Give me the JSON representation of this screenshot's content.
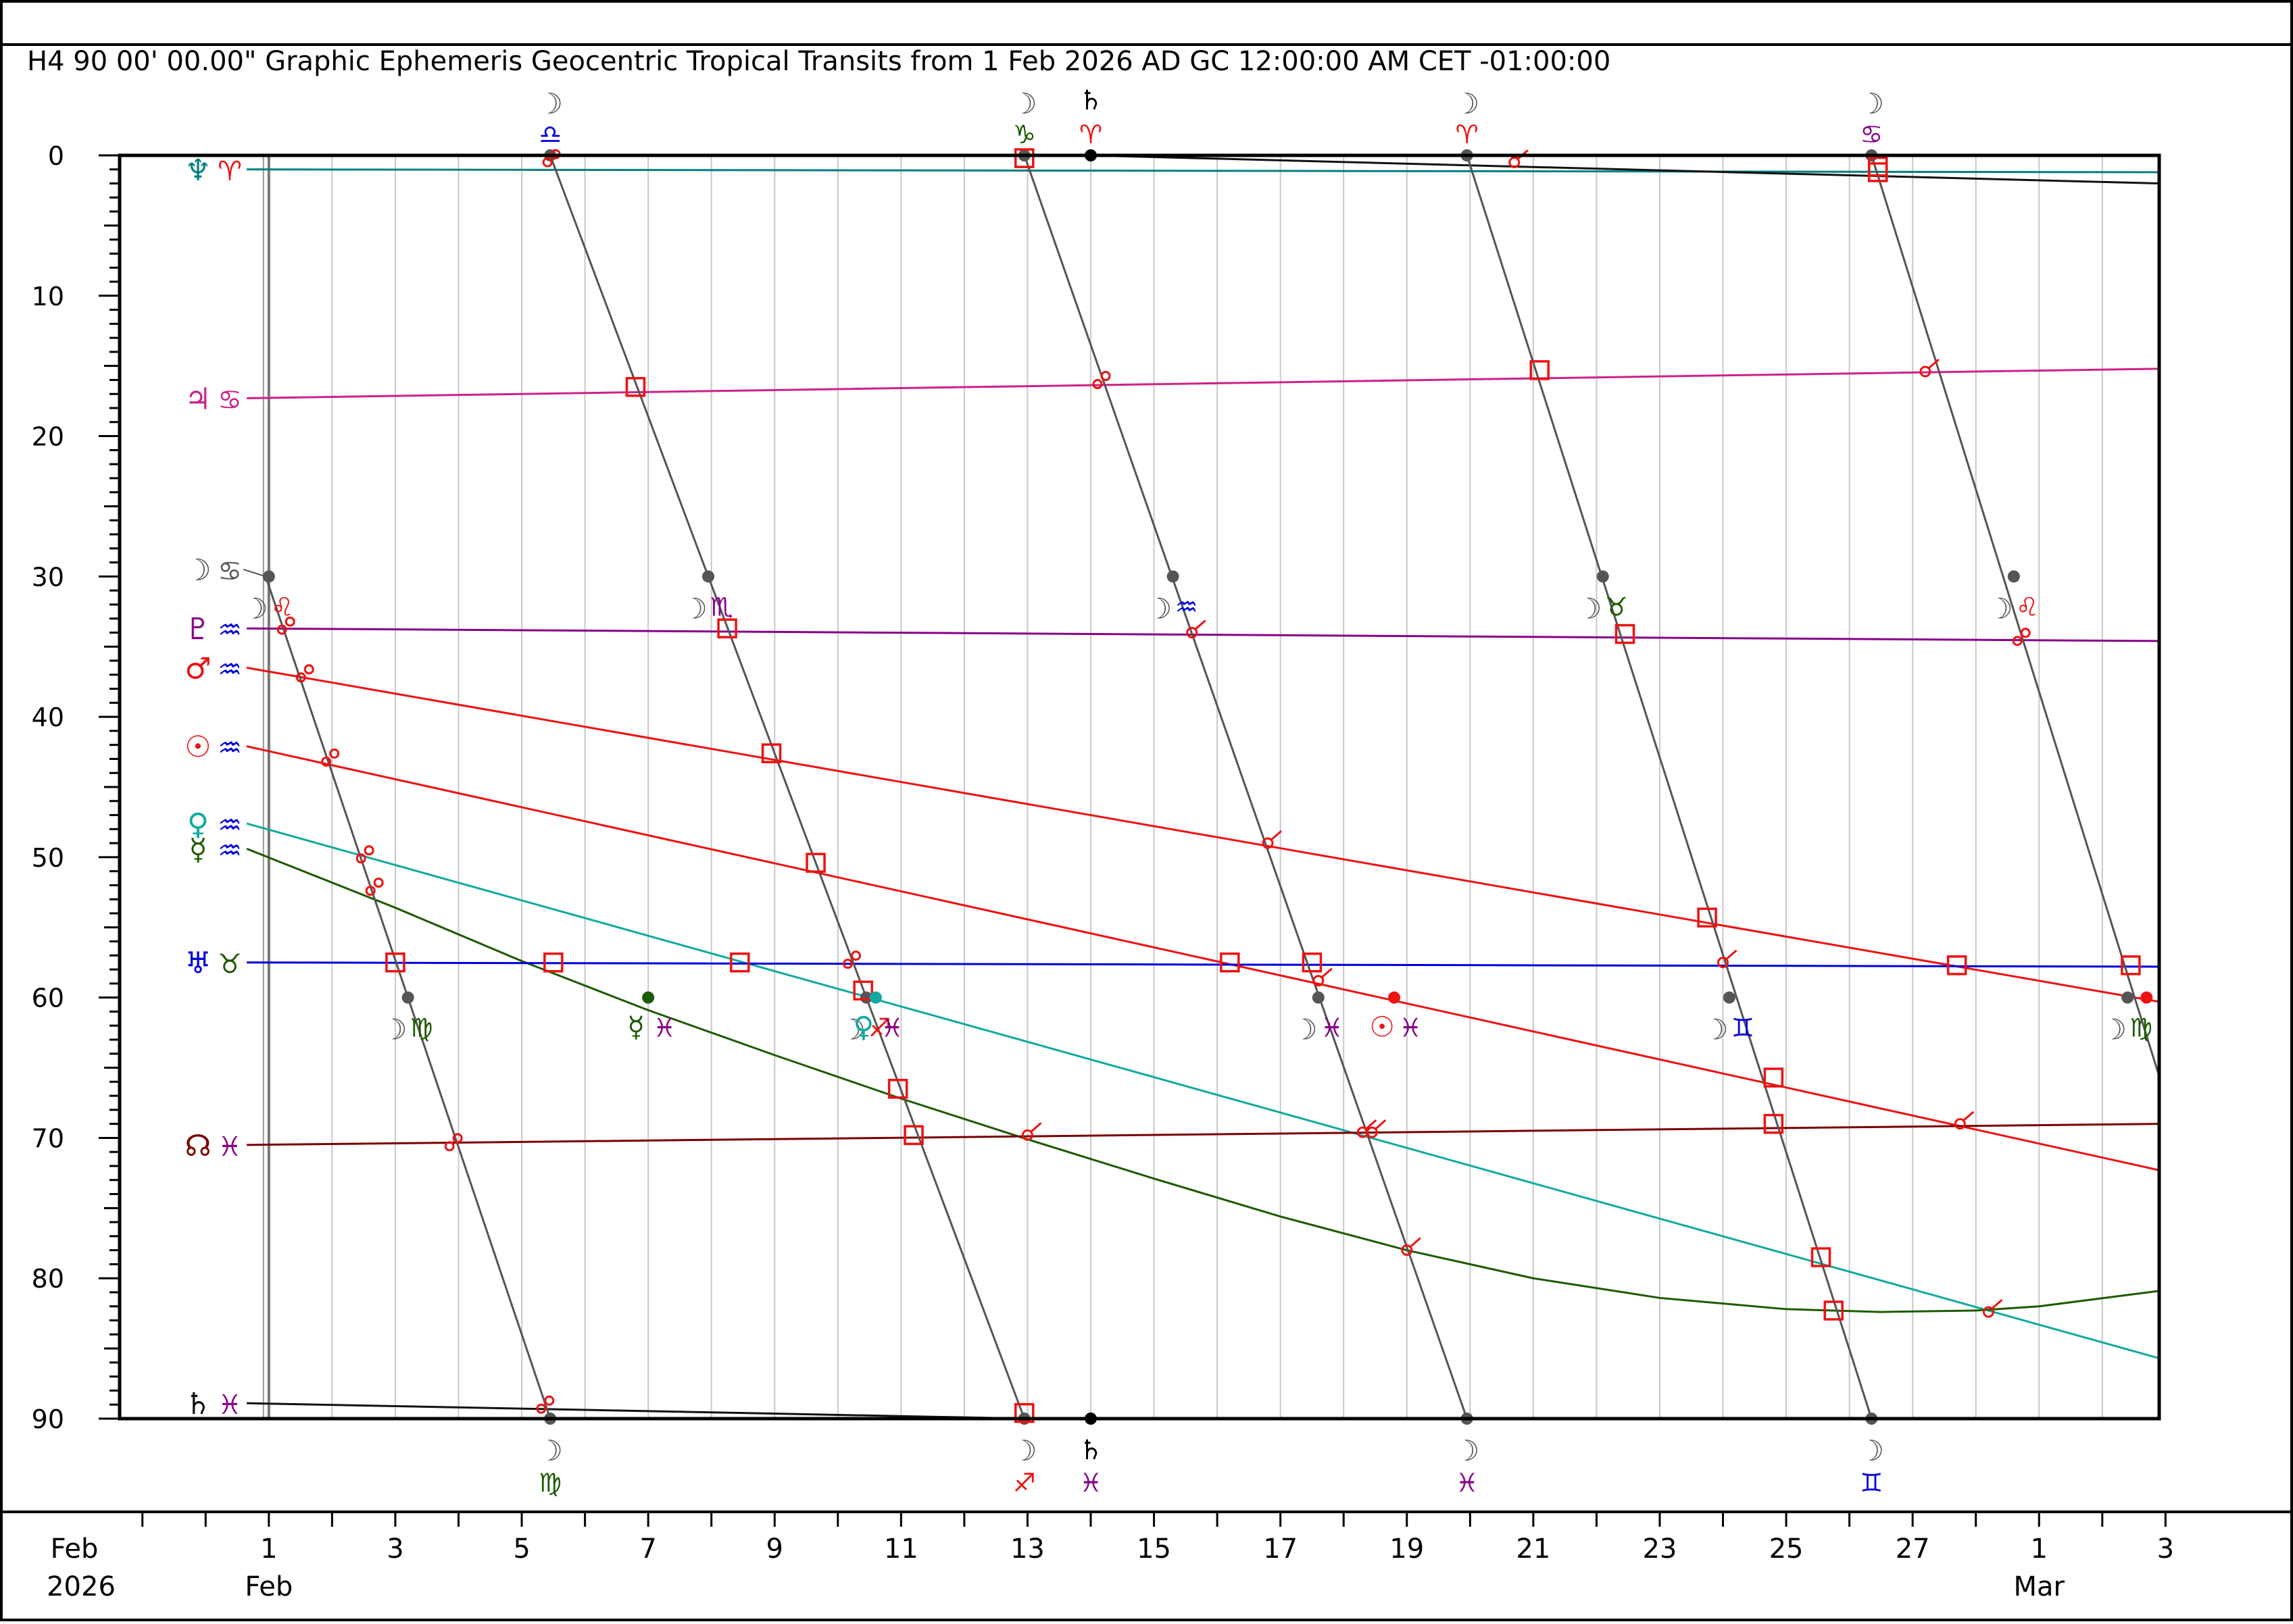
{
  "header": {
    "title": "H4   90 00' 00.00\" Graphic Ephemeris Geocentric Tropical Transits from 1 Feb 2026 AD GC 12:00:00 AM CET -01:00:00"
  },
  "colors": {
    "moon": "#555555",
    "neptune": "#008080",
    "jupiter": "#cc2288",
    "pluto": "#880088",
    "mars": "#ee1111",
    "sun": "#ee1111",
    "venus": "#11aaa0",
    "mercury": "#1d5a00",
    "uranus": "#0000dd",
    "node": "#7a0000",
    "saturn": "#111111",
    "aspect": "#ee1111",
    "grid": "#c8c8c8"
  },
  "chart_data": {
    "type": "line",
    "xlabel": "",
    "ylabel": "",
    "x_unit": "days from 1 Feb 2026",
    "xlim": [
      -2.35,
      29.9
    ],
    "ylim": [
      0,
      90
    ],
    "y_ticks": [
      "0",
      "10",
      "20",
      "30",
      "40",
      "50",
      "60",
      "70",
      "80",
      "90"
    ],
    "x_ticks": [
      {
        "x": 0,
        "label": "1",
        "sub": "Feb"
      },
      {
        "x": 2,
        "label": "3",
        "sub": ""
      },
      {
        "x": 4,
        "label": "5",
        "sub": ""
      },
      {
        "x": 6,
        "label": "7",
        "sub": ""
      },
      {
        "x": 8,
        "label": "9",
        "sub": ""
      },
      {
        "x": 10,
        "label": "11",
        "sub": ""
      },
      {
        "x": 12,
        "label": "13",
        "sub": ""
      },
      {
        "x": 14,
        "label": "15",
        "sub": ""
      },
      {
        "x": 16,
        "label": "17",
        "sub": ""
      },
      {
        "x": 18,
        "label": "19",
        "sub": ""
      },
      {
        "x": 20,
        "label": "21",
        "sub": ""
      },
      {
        "x": 22,
        "label": "23",
        "sub": ""
      },
      {
        "x": 24,
        "label": "25",
        "sub": ""
      },
      {
        "x": 26,
        "label": "27",
        "sub": ""
      },
      {
        "x": 28,
        "label": "1",
        "sub": "Mar"
      },
      {
        "x": 30,
        "label": "3",
        "sub": ""
      }
    ],
    "axis_corner": {
      "month": "Feb",
      "year": "2026"
    },
    "series": [
      {
        "key": "neptune",
        "glyph": "♆",
        "sign": "♈",
        "sign_color": "#ee1111",
        "x": [
          -0.35,
          29.9
        ],
        "y": [
          1.0,
          1.2
        ]
      },
      {
        "key": "jupiter",
        "glyph": "♃",
        "sign": "♋",
        "sign_color": "#cc2288",
        "x": [
          -0.35,
          29.9
        ],
        "y": [
          17.3,
          15.2
        ]
      },
      {
        "key": "pluto",
        "glyph": "♇",
        "sign": "♒",
        "sign_color": "#0000dd",
        "x": [
          -0.35,
          29.9
        ],
        "y": [
          33.7,
          34.6
        ]
      },
      {
        "key": "mars",
        "glyph": "♂",
        "sign": "♒",
        "sign_color": "#0000dd",
        "x": [
          -0.35,
          29.9
        ],
        "y": [
          36.5,
          60.3
        ]
      },
      {
        "key": "sun",
        "glyph": "☉",
        "sign": "♒",
        "sign_color": "#0000dd",
        "x": [
          -0.35,
          29.9
        ],
        "y": [
          42.1,
          72.3
        ]
      },
      {
        "key": "venus",
        "glyph": "♀",
        "sign": "♒",
        "sign_color": "#0000dd",
        "x": [
          -0.35,
          29.9
        ],
        "y": [
          47.6,
          85.7
        ]
      },
      {
        "key": "mercury",
        "glyph": "☿",
        "sign": "♒",
        "sign_color": "#0000dd",
        "x": [
          -0.35,
          2,
          4,
          6,
          8,
          10,
          12,
          14,
          16,
          18,
          20,
          22,
          24,
          25.5,
          27,
          28,
          29.9
        ],
        "y": [
          49.4,
          53.6,
          57.4,
          60.9,
          64.1,
          67.2,
          70.1,
          72.9,
          75.6,
          78.0,
          80.0,
          81.4,
          82.2,
          82.4,
          82.3,
          82.0,
          80.9
        ]
      },
      {
        "key": "uranus",
        "glyph": "♅",
        "sign": "♉",
        "sign_color": "#1d5a00",
        "x": [
          -0.35,
          29.9
        ],
        "y": [
          57.5,
          57.8
        ]
      },
      {
        "key": "node",
        "glyph": "☊",
        "sign": "♓",
        "sign_color": "#880088",
        "x": [
          -0.35,
          29.9
        ],
        "y": [
          70.5,
          69.0
        ]
      },
      {
        "key": "saturn",
        "glyph": "♄",
        "sign": "♓",
        "sign_color": "#880088",
        "x": [
          -0.35,
          12.0
        ],
        "y": [
          88.9,
          90.0
        ]
      },
      {
        "key": "saturn_b",
        "glyph": "",
        "sign": "",
        "sign_color": "#880088",
        "x": [
          13.0,
          29.9
        ],
        "y": [
          0.0,
          2.0
        ]
      }
    ],
    "moon_segments": [
      {
        "x": [
          -0.05,
          4.45
        ],
        "y": [
          30.0,
          90.0
        ]
      },
      {
        "x": [
          4.45,
          11.95
        ],
        "y": [
          0.0,
          90.0
        ]
      },
      {
        "x": [
          11.95,
          18.95
        ],
        "y": [
          0.0,
          90.0
        ]
      },
      {
        "x": [
          18.95,
          25.35
        ],
        "y": [
          0.0,
          90.0
        ]
      },
      {
        "x": [
          25.35,
          29.9
        ],
        "y": [
          0.0,
          65.6
        ]
      }
    ],
    "moon_events": [
      {
        "x": 0.0,
        "y": 30,
        "sign": "♌",
        "sign_color": "#ee1111",
        "pos": "below"
      },
      {
        "x": 2.2,
        "y": 60,
        "sign": "♍",
        "sign_color": "#1d5a00",
        "pos": "below"
      },
      {
        "x": 4.45,
        "y": 0,
        "sign": "♎",
        "sign_color": "#0000dd",
        "pos": "top"
      },
      {
        "x": 4.45,
        "y": 90,
        "sign": "♍",
        "sign_color": "#1d5a00",
        "pos": "bottom"
      },
      {
        "x": 6.95,
        "y": 30,
        "sign": "♏",
        "sign_color": "#880088",
        "pos": "below"
      },
      {
        "x": 9.45,
        "y": 60,
        "sign": "♐",
        "sign_color": "#ee1111",
        "pos": "below"
      },
      {
        "x": 11.95,
        "y": 0,
        "sign": "♑",
        "sign_color": "#1d5a00",
        "pos": "top"
      },
      {
        "x": 11.95,
        "y": 90,
        "sign": "♐",
        "sign_color": "#ee1111",
        "pos": "bottom"
      },
      {
        "x": 14.3,
        "y": 30,
        "sign": "♒",
        "sign_color": "#0000dd",
        "pos": "below"
      },
      {
        "x": 16.6,
        "y": 60,
        "sign": "♓",
        "sign_color": "#880088",
        "pos": "below"
      },
      {
        "x": 18.95,
        "y": 0,
        "sign": "♈",
        "sign_color": "#ee1111",
        "pos": "top"
      },
      {
        "x": 18.95,
        "y": 90,
        "sign": "♓",
        "sign_color": "#880088",
        "pos": "bottom"
      },
      {
        "x": 21.1,
        "y": 30,
        "sign": "♉",
        "sign_color": "#1d5a00",
        "pos": "below"
      },
      {
        "x": 23.1,
        "y": 60,
        "sign": "♊",
        "sign_color": "#0000dd",
        "pos": "below"
      },
      {
        "x": 25.35,
        "y": 0,
        "sign": "♋",
        "sign_color": "#880088",
        "pos": "top"
      },
      {
        "x": 25.35,
        "y": 90,
        "sign": "♊",
        "sign_color": "#0000dd",
        "pos": "bottom"
      },
      {
        "x": 27.6,
        "y": 30,
        "sign": "♌",
        "sign_color": "#ee1111",
        "pos": "below"
      },
      {
        "x": 29.4,
        "y": 60,
        "sign": "♍",
        "sign_color": "#1d5a00",
        "pos": "below"
      }
    ],
    "ingress_events": [
      {
        "x": 6.0,
        "y": 60,
        "glyph": "☿",
        "glyph_color": "#1d5a00",
        "sign": "♓",
        "sign_color": "#880088"
      },
      {
        "x": 9.6,
        "y": 60,
        "glyph": "♀",
        "glyph_color": "#11aaa0",
        "sign": "♓",
        "sign_color": "#880088"
      },
      {
        "x": 17.8,
        "y": 60,
        "glyph": "☉",
        "glyph_color": "#ee1111",
        "sign": "♓",
        "sign_color": "#880088"
      },
      {
        "x": 29.7,
        "y": 60,
        "glyph": "",
        "glyph_color": "#ee1111",
        "sign": "",
        "sign_color": "#ee1111"
      }
    ],
    "saturn_ingress": {
      "x": 13.0,
      "glyph": "♄",
      "top_sign": "♈",
      "top_color": "#ee1111",
      "bottom_sign": "♓",
      "bottom_color": "#880088"
    },
    "squares": [
      {
        "x": 2.0,
        "y": 57.5
      },
      {
        "x": 4.5,
        "y": 57.5
      },
      {
        "x": 7.45,
        "y": 57.5
      },
      {
        "x": 15.2,
        "y": 57.5
      },
      {
        "x": 16.5,
        "y": 57.5
      },
      {
        "x": 26.7,
        "y": 57.7
      },
      {
        "x": 29.45,
        "y": 57.7
      },
      {
        "x": 5.8,
        "y": 16.5
      },
      {
        "x": 20.1,
        "y": 15.3
      },
      {
        "x": 7.25,
        "y": 33.7
      },
      {
        "x": 21.45,
        "y": 34.1
      },
      {
        "x": 7.95,
        "y": 42.6
      },
      {
        "x": 22.75,
        "y": 54.3
      },
      {
        "x": 8.65,
        "y": 50.4
      },
      {
        "x": 23.8,
        "y": 65.7
      },
      {
        "x": 9.4,
        "y": 59.5
      },
      {
        "x": 9.95,
        "y": 66.5
      },
      {
        "x": 10.2,
        "y": 69.8
      },
      {
        "x": 11.95,
        "y": 0.2
      },
      {
        "x": 11.95,
        "y": 89.6
      },
      {
        "x": 23.8,
        "y": 69.0
      },
      {
        "x": 24.55,
        "y": 78.5
      },
      {
        "x": 24.75,
        "y": 82.3
      },
      {
        "x": 25.45,
        "y": 0.8
      },
      {
        "x": 25.45,
        "y": 1.2
      }
    ],
    "trines": [
      {
        "x": 0.25,
        "y": 33.6
      },
      {
        "x": 0.55,
        "y": 37.0
      },
      {
        "x": 0.95,
        "y": 43.0
      },
      {
        "x": 1.5,
        "y": 49.9
      },
      {
        "x": 1.65,
        "y": 52.2
      },
      {
        "x": 2.9,
        "y": 70.4
      },
      {
        "x": 4.35,
        "y": 89.1
      },
      {
        "x": 4.45,
        "y": 0.3
      },
      {
        "x": 9.2,
        "y": 57.4
      },
      {
        "x": 13.15,
        "y": 16.1
      },
      {
        "x": 27.7,
        "y": 34.4
      }
    ],
    "sextiles": [
      {
        "x": 12.0,
        "y": 69.8
      },
      {
        "x": 14.6,
        "y": 34.0
      },
      {
        "x": 15.8,
        "y": 49.0
      },
      {
        "x": 16.6,
        "y": 58.8
      },
      {
        "x": 17.3,
        "y": 69.6
      },
      {
        "x": 17.45,
        "y": 69.6
      },
      {
        "x": 18.0,
        "y": 78.0
      },
      {
        "x": 19.7,
        "y": 0.5
      },
      {
        "x": 23.0,
        "y": 57.5
      },
      {
        "x": 26.2,
        "y": 15.4
      },
      {
        "x": 26.75,
        "y": 69.0
      },
      {
        "x": 27.2,
        "y": 82.4
      }
    ]
  }
}
